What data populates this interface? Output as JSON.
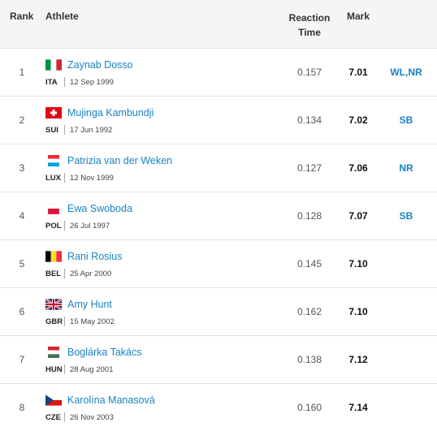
{
  "header": {
    "rank": "Rank",
    "athlete": "Athlete",
    "reaction_line1": "Reaction",
    "reaction_line2": "Time",
    "mark": "Mark"
  },
  "rows": [
    {
      "rank": "1",
      "name": "Zaynab Dosso",
      "country": "ITA",
      "dob": "12 Sep 1999",
      "reaction": "0.157",
      "mark": "7.01",
      "record": "WL,NR",
      "flag_icon": "italy-flag-icon"
    },
    {
      "rank": "2",
      "name": "Mujinga Kambundji",
      "country": "SUI",
      "dob": "17 Jun 1992",
      "reaction": "0.134",
      "mark": "7.02",
      "record": "SB",
      "flag_icon": "switzerland-flag-icon"
    },
    {
      "rank": "3",
      "name": "Patrizia van der Weken",
      "country": "LUX",
      "dob": "12 Nov 1999",
      "reaction": "0.127",
      "mark": "7.06",
      "record": "NR",
      "flag_icon": "luxembourg-flag-icon"
    },
    {
      "rank": "4",
      "name": "Ewa Swoboda",
      "country": "POL",
      "dob": "26 Jul 1997",
      "reaction": "0.128",
      "mark": "7.07",
      "record": "SB",
      "flag_icon": "poland-flag-icon"
    },
    {
      "rank": "5",
      "name": "Rani Rosius",
      "country": "BEL",
      "dob": "25 Apr 2000",
      "reaction": "0.145",
      "mark": "7.10",
      "record": "",
      "flag_icon": "belgium-flag-icon"
    },
    {
      "rank": "6",
      "name": "Amy Hunt",
      "country": "GBR",
      "dob": "15 May 2002",
      "reaction": "0.162",
      "mark": "7.10",
      "record": "",
      "flag_icon": "uk-flag-icon"
    },
    {
      "rank": "7",
      "name": "Boglárka Takács",
      "country": "HUN",
      "dob": "28 Aug 2001",
      "reaction": "0.138",
      "mark": "7.12",
      "record": "",
      "flag_icon": "hungary-flag-icon"
    },
    {
      "rank": "8",
      "name": "Karolína Manasová",
      "country": "CZE",
      "dob": "26 Nov 2003",
      "reaction": "0.160",
      "mark": "7.14",
      "record": "",
      "flag_icon": "czechia-flag-icon"
    }
  ],
  "colors": {
    "link": "#1a82c4",
    "header_bg": "#f5f5f5",
    "divider": "#e3e3e3"
  }
}
